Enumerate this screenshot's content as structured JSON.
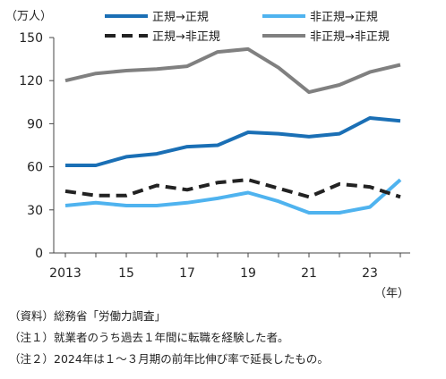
{
  "chart_data": {
    "type": "line",
    "title": "",
    "unit_label": "（万人）",
    "x_unit_label": "（年）",
    "x": [
      2013,
      2014,
      2015,
      2016,
      2017,
      2018,
      2019,
      2020,
      2021,
      2022,
      2023,
      2024
    ],
    "x_tick_labels": [
      "2013",
      "15",
      "17",
      "19",
      "21",
      "23"
    ],
    "ylim": [
      0,
      150
    ],
    "y_ticks": [
      0,
      30,
      60,
      90,
      120,
      150
    ],
    "grid": false,
    "legend_position": "top",
    "series": [
      {
        "name": "正規→正規",
        "color": "#1a6fb5",
        "style": "solid",
        "values": [
          61,
          61,
          67,
          69,
          74,
          75,
          84,
          83,
          81,
          83,
          94,
          92
        ]
      },
      {
        "name": "非正規→正規",
        "color": "#4fb3ef",
        "style": "solid",
        "values": [
          33,
          35,
          33,
          33,
          35,
          38,
          42,
          36,
          28,
          28,
          32,
          51
        ]
      },
      {
        "name": "正規→非正規",
        "color": "#222222",
        "style": "dashed",
        "values": [
          43,
          40,
          40,
          47,
          44,
          49,
          51,
          45,
          39,
          48,
          46,
          39
        ]
      },
      {
        "name": "非正規→非正規",
        "color": "#808080",
        "style": "solid",
        "values": [
          120,
          125,
          127,
          128,
          130,
          140,
          142,
          129,
          112,
          117,
          126,
          131
        ]
      }
    ]
  },
  "notes": [
    "（資料）総務省「労働力調査」",
    "（注１）就業者のうち過去１年間に転職を経験した者。",
    "（注２）2024年は１～３月期の前年比伸び率で延長したもの。"
  ]
}
